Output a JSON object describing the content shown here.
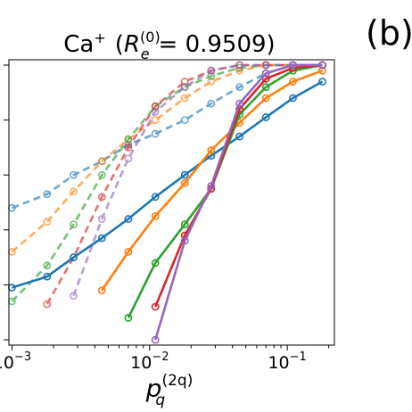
{
  "panel_label": "(b)",
  "chart_data": {
    "type": "line",
    "title": {
      "base": "Ca",
      "sup": "+",
      "param": "R",
      "param_sub": "e",
      "param_sup": "(0)",
      "value": "= 0.9509)"
    },
    "xlabel": {
      "base": "p",
      "sub": "q",
      "sup": "(2q)"
    },
    "xscale": "log",
    "xlim": [
      0.00095,
      0.22
    ],
    "ylim": [
      0.0,
      1.0
    ],
    "yticks": [
      0.0,
      0.2,
      0.4,
      0.6,
      0.8,
      1.0
    ],
    "xticks": [
      {
        "value": 0.001,
        "base": "10",
        "exp": "−3"
      },
      {
        "value": 0.01,
        "base": "10",
        "exp": "−2"
      },
      {
        "value": 0.1,
        "base": "10",
        "exp": "−1"
      }
    ],
    "grid": false,
    "series": [
      {
        "color": "#1f77b4",
        "style": "solid",
        "x": [
          0.001,
          0.0018,
          0.0028,
          0.0045,
          0.007,
          0.011,
          0.018,
          0.028,
          0.045,
          0.07,
          0.11,
          0.18
        ],
        "y": [
          0.19,
          0.23,
          0.3,
          0.37,
          0.44,
          0.52,
          0.6,
          0.67,
          0.74,
          0.81,
          0.88,
          0.94
        ]
      },
      {
        "color": "#ff7f0e",
        "style": "solid",
        "x": [
          0.0045,
          0.007,
          0.011,
          0.018,
          0.028,
          0.045,
          0.07,
          0.11,
          0.18
        ],
        "y": [
          0.18,
          0.32,
          0.45,
          0.57,
          0.69,
          0.79,
          0.88,
          0.94,
          0.98
        ]
      },
      {
        "color": "#2ca02c",
        "style": "solid",
        "x": [
          0.007,
          0.011,
          0.018,
          0.028,
          0.045,
          0.07,
          0.11,
          0.18
        ],
        "y": [
          0.08,
          0.28,
          0.42,
          0.55,
          0.82,
          0.92,
          0.98,
          1.0
        ]
      },
      {
        "color": "#d62728",
        "style": "solid",
        "x": [
          0.011,
          0.018,
          0.028,
          0.045,
          0.07,
          0.11,
          0.18
        ],
        "y": [
          0.12,
          0.38,
          0.55,
          0.84,
          0.95,
          0.99,
          1.0
        ]
      },
      {
        "color": "#9467bd",
        "style": "solid",
        "x": [
          0.011,
          0.018,
          0.028,
          0.045,
          0.07,
          0.11,
          0.18
        ],
        "y": [
          0.0,
          0.36,
          0.56,
          0.86,
          0.97,
          1.0,
          1.0
        ]
      },
      {
        "color": "#1f77b4",
        "style": "dashed",
        "x": [
          0.001,
          0.0018,
          0.0028,
          0.0045,
          0.007,
          0.011,
          0.018,
          0.028,
          0.045,
          0.07,
          0.11,
          0.18
        ],
        "y": [
          0.48,
          0.53,
          0.6,
          0.65,
          0.71,
          0.75,
          0.8,
          0.86,
          0.92,
          0.97,
          1.0,
          1.0
        ]
      },
      {
        "color": "#ff7f0e",
        "style": "dashed",
        "x": [
          0.001,
          0.0018,
          0.0028,
          0.0045,
          0.007,
          0.011,
          0.018,
          0.028,
          0.045,
          0.07,
          0.11,
          0.18
        ],
        "y": [
          0.32,
          0.43,
          0.54,
          0.65,
          0.73,
          0.8,
          0.88,
          0.94,
          0.98,
          1.0,
          1.0,
          1.0
        ]
      },
      {
        "color": "#2ca02c",
        "style": "dashed",
        "x": [
          0.001,
          0.0018,
          0.0028,
          0.0045,
          0.007,
          0.011,
          0.018,
          0.028,
          0.045,
          0.07,
          0.11,
          0.18
        ],
        "y": [
          0.14,
          0.27,
          0.42,
          0.6,
          0.73,
          0.85,
          0.92,
          0.96,
          0.99,
          1.0,
          1.0,
          1.0
        ]
      },
      {
        "color": "#d62728",
        "style": "dashed",
        "x": [
          0.0018,
          0.0028,
          0.0045,
          0.007,
          0.011,
          0.018,
          0.028,
          0.045,
          0.07,
          0.11,
          0.18
        ],
        "y": [
          0.13,
          0.3,
          0.52,
          0.7,
          0.85,
          0.94,
          0.98,
          1.0,
          1.0,
          1.0,
          1.0
        ]
      },
      {
        "color": "#9467bd",
        "style": "dashed",
        "x": [
          0.0028,
          0.0045,
          0.007,
          0.011,
          0.018,
          0.028,
          0.045,
          0.07,
          0.11,
          0.18
        ],
        "y": [
          0.16,
          0.44,
          0.66,
          0.83,
          0.92,
          0.98,
          1.0,
          1.0,
          1.0,
          1.0
        ]
      }
    ]
  }
}
